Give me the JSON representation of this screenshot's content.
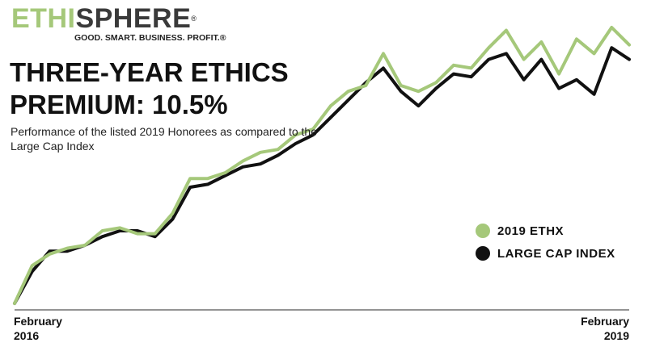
{
  "brand": {
    "logo_part1": "ETHI",
    "logo_part2": "SPHERE",
    "registered_mark": "®",
    "tagline": "GOOD. SMART. BUSINESS. PROFIT.",
    "tagline_mark": "®"
  },
  "colors": {
    "ethx": "#a5c87a",
    "large_cap": "#111111",
    "logo_green": "#a5c87a",
    "logo_dark": "#3a3a3a",
    "axis": "#555555"
  },
  "chart_data": {
    "type": "line",
    "title": "THREE-YEAR ETHICS PREMIUM: 10.5%",
    "subtitle": "Performance of the listed 2019 Honorees as compared to the Large Cap Index",
    "x_start_label": "February 2016",
    "x_end_label": "February 2019",
    "x": [
      0,
      1,
      2,
      3,
      4,
      5,
      6,
      7,
      8,
      9,
      10,
      11,
      12,
      13,
      14,
      15,
      16,
      17,
      18,
      19,
      20,
      21,
      22,
      23,
      24,
      25,
      26,
      27,
      28,
      29,
      30,
      31,
      32,
      33,
      34,
      35
    ],
    "ylim": [
      0,
      100
    ],
    "grid": false,
    "legend_position": "bottom-right",
    "series": [
      {
        "name": "2019 ETHX",
        "color": "#a5c87a",
        "values": [
          0,
          13,
          17,
          19,
          20,
          25,
          26,
          24,
          24,
          31,
          43,
          43,
          45,
          49,
          52,
          53,
          58,
          60,
          68,
          73,
          75,
          86,
          75,
          73,
          76,
          82,
          81,
          88,
          94,
          84,
          90,
          79,
          91,
          86,
          95,
          89
        ]
      },
      {
        "name": "LARGE CAP INDEX",
        "color": "#111111",
        "values": [
          0,
          11,
          18,
          18,
          20,
          23,
          25,
          25,
          23,
          29,
          40,
          41,
          44,
          47,
          48,
          51,
          55,
          58,
          64,
          70,
          76,
          81,
          73,
          68,
          74,
          79,
          78,
          84,
          86,
          77,
          84,
          74,
          77,
          72,
          88,
          84
        ]
      }
    ]
  }
}
